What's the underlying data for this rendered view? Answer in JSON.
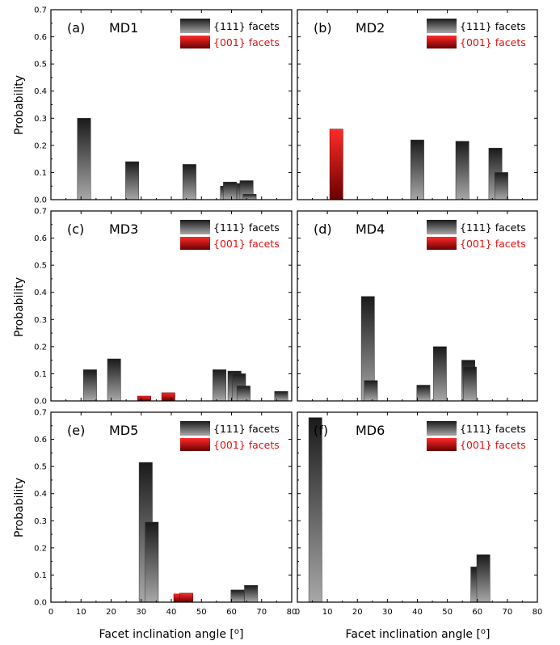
{
  "figure": {
    "xlabel_text": "Facet inclination angle [",
    "xlabel_unit": "o",
    "xlabel_close": "]",
    "ylabel": "Probability"
  },
  "colors": {
    "f111_light": "#a8a8a8",
    "f111_dark": "#1a1a1a",
    "f001_light": "#ff2a2a",
    "f001_dark": "#6a0000",
    "axis": "#000000",
    "text": "#000000",
    "legend_001_text": "#e01010"
  },
  "chart_data": [
    {
      "type": "bar",
      "panel": "(a)",
      "title": "MD1",
      "legend": [
        "{111} facets",
        "{001} facets"
      ],
      "xlim": [
        0,
        80
      ],
      "ylim": [
        0,
        0.7
      ],
      "xticks": [
        "0",
        "10",
        "20",
        "30",
        "40",
        "50",
        "60",
        "70",
        "80"
      ],
      "yticks": [
        "0.0",
        "0.1",
        "0.2",
        "0.3",
        "0.4",
        "0.5",
        "0.6",
        "0.7"
      ],
      "bars": [
        {
          "facet": "111",
          "x": 11.0,
          "value": 0.3
        },
        {
          "facet": "111",
          "x": 27.0,
          "value": 0.14
        },
        {
          "facet": "111",
          "x": 46.0,
          "value": 0.13
        },
        {
          "facet": "111",
          "x": 58.5,
          "value": 0.05
        },
        {
          "facet": "111",
          "x": 59.5,
          "value": 0.065
        },
        {
          "facet": "111",
          "x": 64.0,
          "value": 0.06
        },
        {
          "facet": "111",
          "x": 65.0,
          "value": 0.07
        },
        {
          "facet": "111",
          "x": 66.0,
          "value": 0.02
        }
      ]
    },
    {
      "type": "bar",
      "panel": "(b)",
      "title": "MD2",
      "legend": [
        "{111} facets",
        "{001} facets"
      ],
      "xlim": [
        0,
        80
      ],
      "ylim": [
        0,
        0.7
      ],
      "xticks": [
        "0",
        "10",
        "20",
        "30",
        "40",
        "50",
        "60",
        "70",
        "80"
      ],
      "yticks": [
        "0.0",
        "0.1",
        "0.2",
        "0.3",
        "0.4",
        "0.5",
        "0.6",
        "0.7"
      ],
      "bars": [
        {
          "facet": "001",
          "x": 13.0,
          "value": 0.26
        },
        {
          "facet": "111",
          "x": 40.0,
          "value": 0.22
        },
        {
          "facet": "111",
          "x": 55.0,
          "value": 0.215
        },
        {
          "facet": "111",
          "x": 66.0,
          "value": 0.19
        },
        {
          "facet": "111",
          "x": 68.0,
          "value": 0.1
        }
      ]
    },
    {
      "type": "bar",
      "panel": "(c)",
      "title": "MD3",
      "legend": [
        "{111} facets",
        "{001} facets"
      ],
      "xlim": [
        0,
        80
      ],
      "ylim": [
        0,
        0.7
      ],
      "xticks": [
        "0",
        "10",
        "20",
        "30",
        "40",
        "50",
        "60",
        "70",
        "80"
      ],
      "yticks": [
        "0.0",
        "0.1",
        "0.2",
        "0.3",
        "0.4",
        "0.5",
        "0.6",
        "0.7"
      ],
      "bars": [
        {
          "facet": "111",
          "x": 13.0,
          "value": 0.115
        },
        {
          "facet": "111",
          "x": 21.0,
          "value": 0.155
        },
        {
          "facet": "001",
          "x": 31.0,
          "value": 0.018
        },
        {
          "facet": "001",
          "x": 39.0,
          "value": 0.03
        },
        {
          "facet": "111",
          "x": 56.0,
          "value": 0.115
        },
        {
          "facet": "111",
          "x": 61.0,
          "value": 0.11
        },
        {
          "facet": "111",
          "x": 62.5,
          "value": 0.1
        },
        {
          "facet": "111",
          "x": 64.0,
          "value": 0.055
        },
        {
          "facet": "111",
          "x": 76.5,
          "value": 0.035
        }
      ]
    },
    {
      "type": "bar",
      "panel": "(d)",
      "title": "MD4",
      "legend": [
        "{111} facets",
        "{001} facets"
      ],
      "xlim": [
        0,
        80
      ],
      "ylim": [
        0,
        0.7
      ],
      "xticks": [
        "0",
        "10",
        "20",
        "30",
        "40",
        "50",
        "60",
        "70",
        "80"
      ],
      "yticks": [
        "0.0",
        "0.1",
        "0.2",
        "0.3",
        "0.4",
        "0.5",
        "0.6",
        "0.7"
      ],
      "bars": [
        {
          "facet": "111",
          "x": 23.5,
          "value": 0.385
        },
        {
          "facet": "111",
          "x": 24.5,
          "value": 0.075
        },
        {
          "facet": "111",
          "x": 42.0,
          "value": 0.058
        },
        {
          "facet": "111",
          "x": 47.5,
          "value": 0.2
        },
        {
          "facet": "111",
          "x": 57.0,
          "value": 0.15
        },
        {
          "facet": "111",
          "x": 57.5,
          "value": 0.125
        }
      ]
    },
    {
      "type": "bar",
      "panel": "(e)",
      "title": "MD5",
      "legend": [
        "{111} facets",
        "{001} facets"
      ],
      "xlim": [
        0,
        80
      ],
      "ylim": [
        0,
        0.7
      ],
      "xticks": [
        "0",
        "10",
        "20",
        "30",
        "40",
        "50",
        "60",
        "70",
        "80"
      ],
      "yticks": [
        "0.0",
        "0.1",
        "0.2",
        "0.3",
        "0.4",
        "0.5",
        "0.6",
        "0.7"
      ],
      "bars": [
        {
          "facet": "111",
          "x": 31.5,
          "value": 0.515
        },
        {
          "facet": "111",
          "x": 33.5,
          "value": 0.295
        },
        {
          "facet": "001",
          "x": 43.0,
          "value": 0.03
        },
        {
          "facet": "001",
          "x": 45.0,
          "value": 0.033
        },
        {
          "facet": "111",
          "x": 62.0,
          "value": 0.045
        },
        {
          "facet": "111",
          "x": 66.5,
          "value": 0.062
        }
      ]
    },
    {
      "type": "bar",
      "panel": "(f)",
      "title": "MD6",
      "legend": [
        "{111} facets",
        "{001} facets"
      ],
      "xlim": [
        0,
        80
      ],
      "ylim": [
        0,
        0.7
      ],
      "xticks": [
        "0",
        "10",
        "20",
        "30",
        "40",
        "50",
        "60",
        "70",
        "80"
      ],
      "yticks": [
        "0.0",
        "0.1",
        "0.2",
        "0.3",
        "0.4",
        "0.5",
        "0.6",
        "0.7"
      ],
      "bars": [
        {
          "facet": "111",
          "x": 6.0,
          "value": 0.68
        },
        {
          "facet": "111",
          "x": 60.0,
          "value": 0.13
        },
        {
          "facet": "111",
          "x": 62.0,
          "value": 0.175
        }
      ]
    }
  ]
}
